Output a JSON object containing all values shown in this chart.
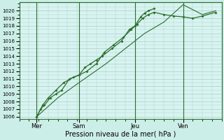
{
  "xlabel": "Pression niveau de la mer( hPa )",
  "bg_color": "#cceee8",
  "plot_bg_color": "#d8f4f0",
  "grid_color": "#aacece",
  "line_color": "#2d6e2d",
  "ymin": 1006,
  "ymax": 1021,
  "xmin": 0,
  "xmax": 10.5,
  "yticks": [
    1006,
    1007,
    1008,
    1009,
    1010,
    1011,
    1012,
    1013,
    1014,
    1015,
    1016,
    1017,
    1018,
    1019,
    1020
  ],
  "day_labels": [
    "Mer",
    "Sam",
    "Jeu",
    "Ven"
  ],
  "day_positions": [
    0.9,
    3.1,
    6.0,
    8.5
  ],
  "series1_x": [
    0.9,
    1.1,
    1.3,
    1.6,
    1.9,
    2.2,
    2.6,
    3.1,
    3.4,
    3.7,
    4.0,
    4.3,
    4.8,
    5.3,
    5.7,
    6.0,
    6.3,
    6.5,
    6.7,
    7.0
  ],
  "series1_y": [
    1006,
    1007,
    1007.5,
    1008.5,
    1009,
    1009.5,
    1011,
    1011.5,
    1012.5,
    1013,
    1013.5,
    1014,
    1015,
    1016,
    1017.5,
    1018,
    1019.2,
    1019.7,
    1020.0,
    1020.3
  ],
  "series2_x": [
    0.9,
    1.2,
    1.5,
    1.9,
    2.3,
    2.8,
    3.1,
    3.5,
    4.0,
    4.4,
    4.9,
    5.4,
    5.8,
    6.1,
    6.4,
    6.7,
    7.0,
    7.5,
    8.0,
    8.5,
    9.0,
    9.5,
    10.2
  ],
  "series2_y": [
    1006,
    1007.5,
    1008.5,
    1009.5,
    1010.5,
    1011.2,
    1011.5,
    1012.0,
    1013.0,
    1014.5,
    1015.5,
    1016.5,
    1017.5,
    1018.2,
    1019.0,
    1019.5,
    1019.8,
    1019.5,
    1019.3,
    1019.2,
    1019.0,
    1019.3,
    1019.8
  ],
  "series3_x": [
    0.9,
    2.0,
    3.1,
    4.5,
    5.5,
    6.5,
    7.5,
    8.5,
    9.5,
    10.2
  ],
  "series3_y": [
    1006,
    1008.5,
    1010.5,
    1013.0,
    1015.0,
    1017.0,
    1018.5,
    1020.8,
    1019.5,
    1020.0
  ]
}
